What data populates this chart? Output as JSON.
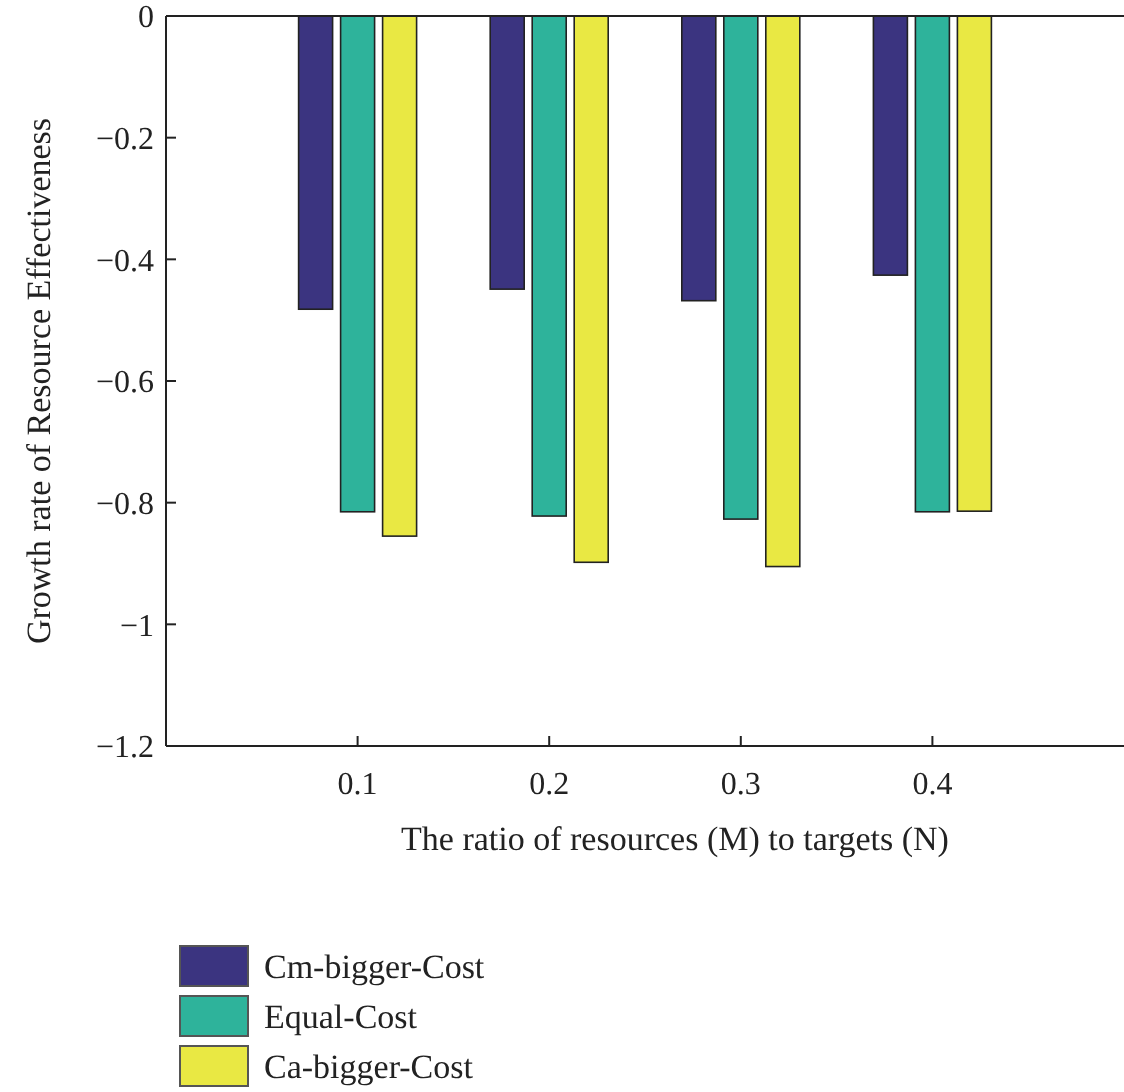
{
  "chart_data": {
    "type": "bar",
    "xlabel": "The ratio of resources (M) to targets (N)",
    "ylabel": "Growth rate of Resource Effectiveness",
    "categories": [
      "0.1",
      "0.2",
      "0.3",
      "0.4"
    ],
    "series": [
      {
        "name": "Cm-bigger-Cost",
        "color": "#3b3480",
        "values": [
          -0.482,
          -0.449,
          -0.468,
          -0.426
        ]
      },
      {
        "name": "Equal-Cost",
        "color": "#2eb39b",
        "values": [
          -0.815,
          -0.822,
          -0.827,
          -0.815
        ]
      },
      {
        "name": "Ca-bigger-Cost",
        "color": "#e9e843",
        "values": [
          -0.855,
          -0.898,
          -0.905,
          -0.814
        ]
      }
    ],
    "ylim": [
      -1.2,
      0
    ],
    "yticks": [
      0,
      {
        "value": -0.2,
        "label": "−0.2"
      },
      {
        "value": -0.4,
        "label": "−0.4"
      },
      {
        "value": -0.6,
        "label": "−0.6"
      },
      {
        "value": -0.8,
        "label": "−0.8"
      },
      {
        "value": -1,
        "label": "−1"
      },
      {
        "value": -1.2,
        "label": "−1.2"
      }
    ],
    "grid": false,
    "legend": "bottom"
  }
}
